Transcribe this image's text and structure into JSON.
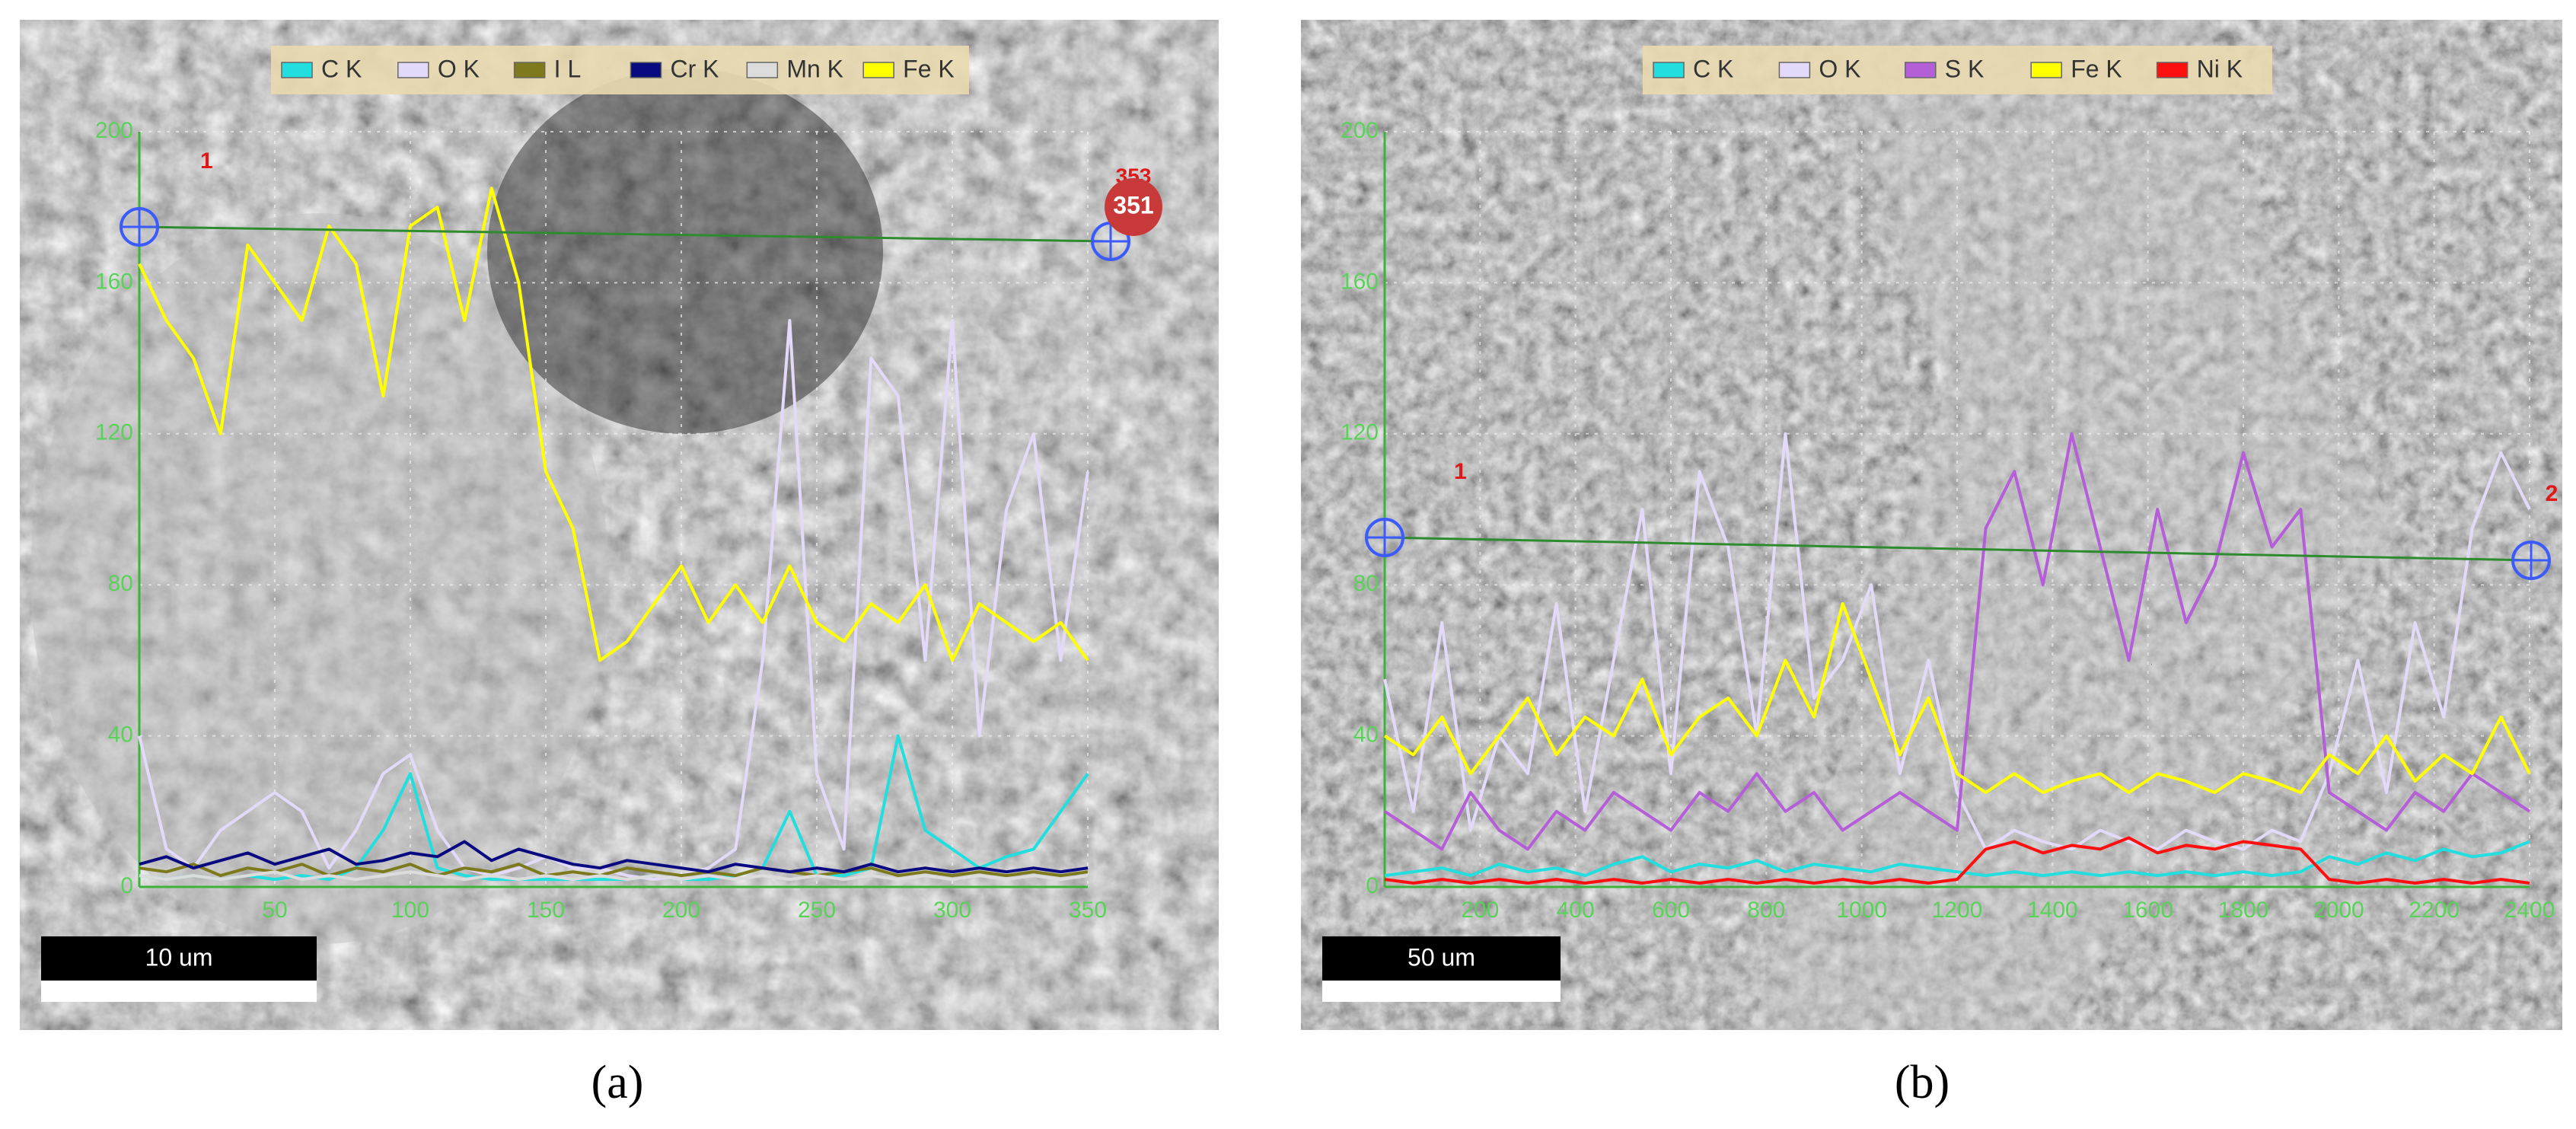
{
  "chart_data": [
    {
      "type": "line",
      "x": [
        0,
        10,
        20,
        30,
        40,
        50,
        60,
        70,
        80,
        90,
        100,
        110,
        120,
        130,
        140,
        150,
        160,
        170,
        180,
        190,
        200,
        210,
        220,
        230,
        240,
        250,
        260,
        270,
        280,
        290,
        300,
        310,
        320,
        330,
        340,
        350
      ],
      "series": [
        {
          "name": "C K",
          "color": "#22dede",
          "values": [
            3,
            2,
            3,
            2,
            3,
            2,
            3,
            2,
            5,
            15,
            30,
            5,
            3,
            2,
            2,
            2,
            2,
            2,
            2,
            3,
            2,
            2,
            3,
            5,
            20,
            3,
            3,
            5,
            40,
            15,
            10,
            5,
            8,
            10,
            20,
            30
          ]
        },
        {
          "name": "O K",
          "color": "#e2daf8",
          "values": [
            40,
            10,
            5,
            15,
            20,
            25,
            20,
            5,
            15,
            30,
            35,
            15,
            5,
            3,
            5,
            8,
            5,
            5,
            3,
            2,
            3,
            5,
            10,
            60,
            150,
            30,
            10,
            140,
            130,
            60,
            150,
            40,
            100,
            120,
            60,
            110
          ]
        },
        {
          "name": "I L",
          "color": "#7d7a1e",
          "values": [
            5,
            4,
            6,
            3,
            5,
            4,
            6,
            3,
            5,
            4,
            6,
            3,
            5,
            4,
            6,
            3,
            4,
            3,
            5,
            4,
            3,
            4,
            3,
            5,
            4,
            3,
            4,
            5,
            3,
            4,
            3,
            4,
            3,
            4,
            3,
            4
          ]
        },
        {
          "name": "Cr K",
          "color": "#0a0a80",
          "values": [
            6,
            8,
            5,
            7,
            9,
            6,
            8,
            10,
            6,
            7,
            9,
            8,
            12,
            7,
            10,
            8,
            6,
            5,
            7,
            6,
            5,
            4,
            6,
            5,
            4,
            5,
            4,
            6,
            4,
            5,
            4,
            5,
            4,
            5,
            4,
            5
          ]
        },
        {
          "name": "Mn K",
          "color": "#dcdcdc",
          "values": [
            3,
            2,
            3,
            2,
            3,
            4,
            2,
            3,
            2,
            3,
            4,
            3,
            2,
            3,
            2,
            3,
            2,
            3,
            2,
            3,
            2,
            3,
            2,
            3,
            2,
            3,
            2,
            3,
            2,
            3,
            2,
            3,
            2,
            3,
            2,
            3
          ]
        },
        {
          "name": "Fe K",
          "color": "#ffff00",
          "values": [
            165,
            150,
            140,
            120,
            170,
            160,
            150,
            175,
            165,
            130,
            175,
            180,
            150,
            185,
            160,
            110,
            95,
            60,
            65,
            75,
            85,
            70,
            80,
            70,
            85,
            70,
            65,
            75,
            70,
            80,
            60,
            75,
            70,
            65,
            70,
            60
          ]
        }
      ],
      "xlim": [
        0,
        350
      ],
      "ylim": [
        0,
        200
      ],
      "xticks": [
        50,
        100,
        150,
        200,
        250,
        300,
        350
      ],
      "yticks": [
        0,
        40,
        80,
        120,
        160,
        200
      ],
      "grid": true,
      "annotations": [
        "1",
        "353",
        "351"
      ],
      "scale_bar": "10 um",
      "caption": "(a)"
    },
    {
      "type": "line",
      "x": [
        0,
        60,
        120,
        180,
        240,
        300,
        360,
        420,
        480,
        540,
        600,
        660,
        720,
        780,
        840,
        900,
        960,
        1020,
        1080,
        1140,
        1200,
        1260,
        1320,
        1380,
        1440,
        1500,
        1560,
        1620,
        1680,
        1740,
        1800,
        1860,
        1920,
        1980,
        2040,
        2100,
        2160,
        2220,
        2280,
        2340,
        2400
      ],
      "series": [
        {
          "name": "C K",
          "color": "#22dede",
          "values": [
            3,
            4,
            5,
            3,
            6,
            4,
            5,
            3,
            6,
            8,
            4,
            6,
            5,
            7,
            4,
            6,
            5,
            4,
            6,
            5,
            4,
            3,
            4,
            3,
            4,
            3,
            4,
            3,
            4,
            3,
            4,
            3,
            4,
            8,
            6,
            9,
            7,
            10,
            8,
            9,
            12
          ]
        },
        {
          "name": "O K",
          "color": "#e2daf8",
          "values": [
            55,
            20,
            70,
            15,
            40,
            30,
            75,
            20,
            60,
            100,
            30,
            110,
            90,
            40,
            120,
            50,
            60,
            80,
            30,
            60,
            25,
            10,
            15,
            12,
            10,
            15,
            12,
            10,
            15,
            12,
            10,
            15,
            12,
            30,
            60,
            25,
            70,
            45,
            95,
            115,
            100
          ]
        },
        {
          "name": "S K",
          "color": "#b45ed8",
          "values": [
            20,
            15,
            10,
            25,
            15,
            10,
            20,
            15,
            25,
            20,
            15,
            25,
            20,
            30,
            20,
            25,
            15,
            20,
            25,
            20,
            15,
            95,
            110,
            80,
            120,
            90,
            60,
            100,
            70,
            85,
            115,
            90,
            100,
            25,
            20,
            15,
            25,
            20,
            30,
            25,
            20
          ]
        },
        {
          "name": "Fe K",
          "color": "#ffff00",
          "values": [
            40,
            35,
            45,
            30,
            40,
            50,
            35,
            45,
            40,
            55,
            35,
            45,
            50,
            40,
            60,
            45,
            75,
            55,
            35,
            50,
            30,
            25,
            30,
            25,
            28,
            30,
            25,
            30,
            28,
            25,
            30,
            28,
            25,
            35,
            30,
            40,
            28,
            35,
            30,
            45,
            30
          ]
        },
        {
          "name": "Ni K",
          "color": "#ff1010",
          "values": [
            2,
            1,
            2,
            1,
            2,
            1,
            2,
            1,
            2,
            1,
            2,
            1,
            2,
            1,
            2,
            1,
            2,
            1,
            2,
            1,
            2,
            10,
            12,
            9,
            11,
            10,
            13,
            9,
            11,
            10,
            12,
            11,
            10,
            2,
            1,
            2,
            1,
            2,
            1,
            2,
            1
          ]
        }
      ],
      "xlim": [
        0,
        2400
      ],
      "ylim": [
        0,
        200
      ],
      "xticks": [
        200,
        400,
        600,
        800,
        1000,
        1200,
        1400,
        1600,
        1800,
        2000,
        2200,
        2400
      ],
      "yticks": [
        0,
        40,
        80,
        120,
        160,
        200
      ],
      "grid": true,
      "annotations": [
        "1",
        "2"
      ],
      "scale_bar": "50 um",
      "caption": "(b)"
    }
  ]
}
